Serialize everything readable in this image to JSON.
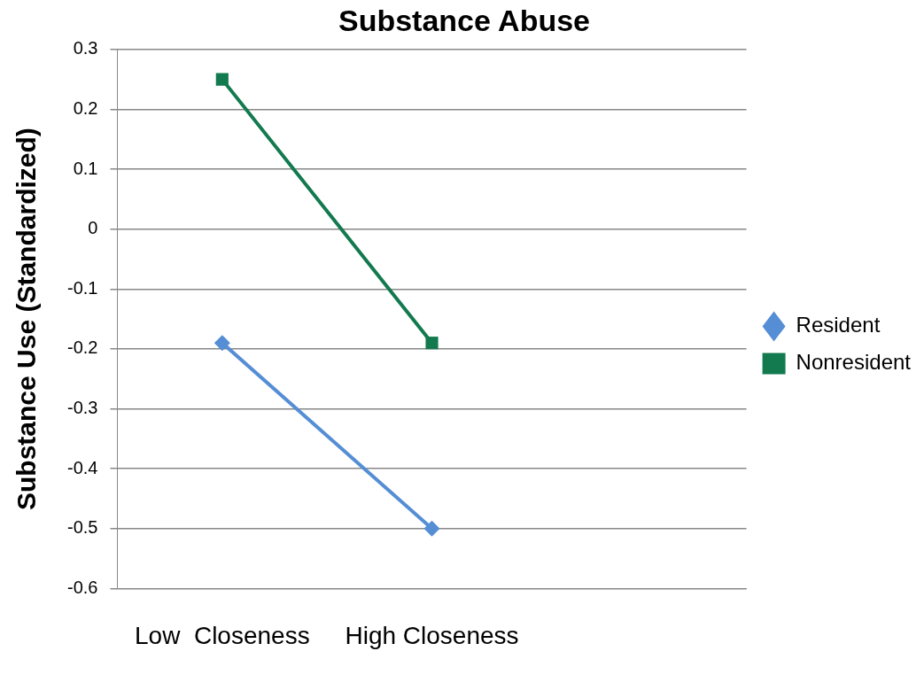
{
  "chart_data": {
    "type": "line",
    "title": "Substance Abuse",
    "ylabel": "Substance Use (Standardized)",
    "categories": [
      "Low  Closeness",
      "High Closeness",
      null
    ],
    "series": [
      {
        "name": "Resident",
        "color": "#558ed5",
        "values": [
          -0.19,
          -0.5,
          null
        ],
        "marker": "diamond"
      },
      {
        "name": "Nonresident",
        "color": "#127a4e",
        "values": [
          0.25,
          -0.19,
          null
        ],
        "marker": "square"
      }
    ],
    "ylim": [
      -0.6,
      0.3
    ],
    "yticks": [
      -0.6,
      -0.5,
      -0.4,
      -0.3,
      -0.2,
      -0.1,
      0,
      0.1,
      0.2,
      0.3
    ],
    "grid": "y",
    "legend": "right",
    "line_style": "solid"
  }
}
